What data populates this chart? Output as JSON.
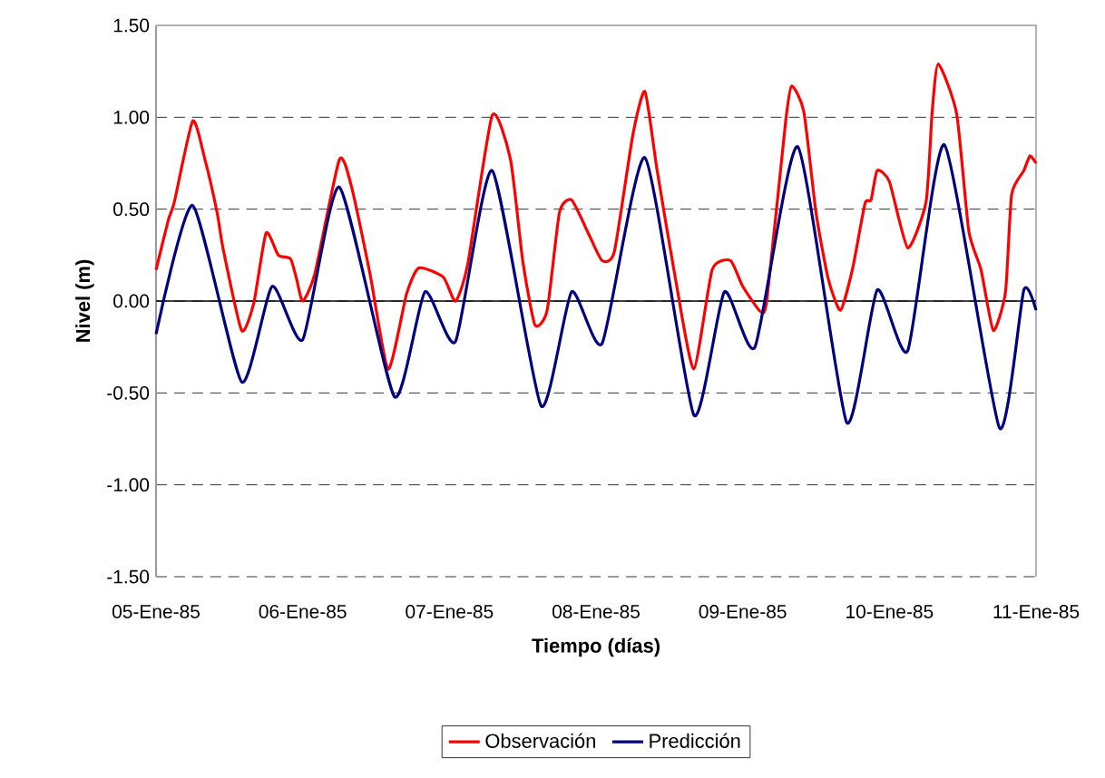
{
  "chart_data": {
    "type": "line",
    "xlabel": "Tiempo (días)",
    "ylabel": "Nivel (m)",
    "xlim": [
      "1985-01-05",
      "1985-01-11"
    ],
    "xticks": [
      {
        "value": "1985-01-05",
        "label": "05-Ene-85"
      },
      {
        "value": "1985-01-06",
        "label": "06-Ene-85"
      },
      {
        "value": "1985-01-07",
        "label": "07-Ene-85"
      },
      {
        "value": "1985-01-08",
        "label": "08-Ene-85"
      },
      {
        "value": "1985-01-09",
        "label": "09-Ene-85"
      },
      {
        "value": "1985-01-10",
        "label": "10-Ene-85"
      },
      {
        "value": "1985-01-11",
        "label": "11-Ene-85"
      }
    ],
    "ylim": [
      -1.5,
      1.5
    ],
    "yticks": [
      {
        "value": -1.5,
        "label": "-1.50"
      },
      {
        "value": -1.0,
        "label": "-1.00"
      },
      {
        "value": -0.5,
        "label": "-0.50"
      },
      {
        "value": 0,
        "label": "0.00"
      },
      {
        "value": 0.5,
        "label": "0.50"
      },
      {
        "value": 1.0,
        "label": "1.00"
      },
      {
        "value": 1.5,
        "label": "1.50"
      }
    ],
    "grid": "y",
    "legend": "bottom",
    "marker": "none",
    "line_style": "solid",
    "series": [
      {
        "name": "Observación",
        "color": "#ff0000",
        "x": [
          "1985-01-05T00:00",
          "1985-01-05T02:00",
          "1985-01-05T03:00",
          "1985-01-05T06:00",
          "1985-01-05T08:00",
          "1985-01-05T10:00",
          "1985-01-05T11:00",
          "1985-01-05T14:00",
          "1985-01-05T16:00",
          "1985-01-05T18:00",
          "1985-01-05T20:00",
          "1985-01-05T22:00",
          "1985-01-05T23:00",
          "1985-01-06T00:00",
          "1985-01-06T02:00",
          "1985-01-06T06:00",
          "1985-01-06T08:00",
          "1985-01-06T11:00",
          "1985-01-06T14:00",
          "1985-01-06T17:00",
          "1985-01-06T19:00",
          "1985-01-06T23:00",
          "1985-01-07T01:00",
          "1985-01-07T03:00",
          "1985-01-07T07:00",
          "1985-01-07T10:00",
          "1985-01-07T12:00",
          "1985-01-07T14:00",
          "1985-01-07T16:00",
          "1985-01-07T18:00",
          "1985-01-07T20:00",
          "1985-01-07T23:00",
          "1985-01-08T01:00",
          "1985-01-08T03:00",
          "1985-01-08T06:00",
          "1985-01-08T08:00",
          "1985-01-08T10:00",
          "1985-01-08T13:00",
          "1985-01-08T16:00",
          "1985-01-08T19:00",
          "1985-01-08T22:00",
          "1985-01-09T00:00",
          "1985-01-09T03:00",
          "1985-01-09T04:00",
          "1985-01-09T07:00",
          "1985-01-09T08:00",
          "1985-01-09T10:00",
          "1985-01-09T12:00",
          "1985-01-09T14:00",
          "1985-01-09T16:00",
          "1985-01-09T18:00",
          "1985-01-09T20:00",
          "1985-01-09T21:00",
          "1985-01-09T22:00",
          "1985-01-10T00:00",
          "1985-01-10T03:00",
          "1985-01-10T06:00",
          "1985-01-10T07:00",
          "1985-01-10T08:00",
          "1985-01-10T11:00",
          "1985-01-10T13:00",
          "1985-01-10T15:00",
          "1985-01-10T17:00",
          "1985-01-10T19:00",
          "1985-01-10T20:00",
          "1985-01-10T22:00",
          "1985-01-10T23:00",
          "1985-01-11T00:00"
        ],
        "values": [
          0.17,
          0.44,
          0.54,
          0.98,
          0.77,
          0.48,
          0.28,
          -0.16,
          -0.01,
          0.37,
          0.25,
          0.23,
          0.12,
          0.0,
          0.15,
          0.77,
          0.62,
          0.15,
          -0.37,
          0.04,
          0.18,
          0.13,
          0.0,
          0.2,
          1.01,
          0.77,
          0.22,
          -0.13,
          -0.05,
          0.48,
          0.55,
          0.35,
          0.22,
          0.27,
          0.9,
          1.14,
          0.71,
          0.12,
          -0.37,
          0.17,
          0.22,
          0.08,
          -0.06,
          0.02,
          0.97,
          1.17,
          1.03,
          0.48,
          0.12,
          -0.05,
          0.18,
          0.53,
          0.55,
          0.71,
          0.65,
          0.29,
          0.54,
          1.03,
          1.29,
          1.02,
          0.38,
          0.17,
          -0.16,
          0.05,
          0.58,
          0.71,
          0.79,
          0.75
        ]
      },
      {
        "name": "Predicción",
        "color": "#000080",
        "x": [
          "1985-01-05T00:00",
          "1985-01-05T06:00",
          "1985-01-05T14:00",
          "1985-01-05T19:00",
          "1985-01-06T00:00",
          "1985-01-06T06:00",
          "1985-01-06T15:00",
          "1985-01-06T20:00",
          "1985-01-07T01:00",
          "1985-01-07T07:00",
          "1985-01-07T15:00",
          "1985-01-07T20:00",
          "1985-01-08T01:00",
          "1985-01-08T08:00",
          "1985-01-08T16:00",
          "1985-01-08T21:00",
          "1985-01-09T02:00",
          "1985-01-09T09:00",
          "1985-01-09T17:00",
          "1985-01-09T22:00",
          "1985-01-10T03:00",
          "1985-01-10T09:00",
          "1985-01-10T18:00",
          "1985-01-10T22:00",
          "1985-01-11T00:00"
        ],
        "values": [
          -0.18,
          0.52,
          -0.44,
          0.08,
          -0.21,
          0.62,
          -0.52,
          0.05,
          -0.22,
          0.71,
          -0.57,
          0.05,
          -0.23,
          0.78,
          -0.62,
          0.05,
          -0.25,
          0.84,
          -0.66,
          0.06,
          -0.27,
          0.85,
          -0.69,
          0.06,
          -0.05
        ]
      }
    ]
  }
}
